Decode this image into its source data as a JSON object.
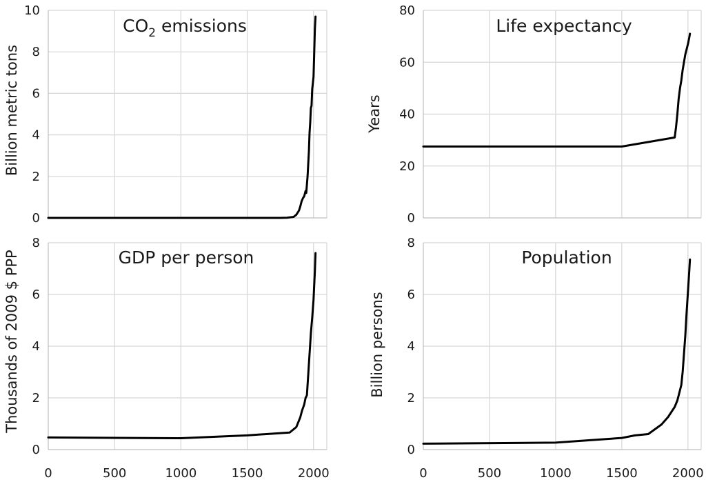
{
  "chart_data": [
    {
      "type": "line",
      "title": "CO₂ emissions",
      "xlabel": "",
      "ylabel": "Billion metric tons",
      "xlim": [
        0,
        2100
      ],
      "ylim": [
        0,
        10
      ],
      "x_ticks": [
        0,
        500,
        1000,
        1500,
        2000
      ],
      "y_ticks": [
        0,
        2,
        4,
        6,
        8,
        10
      ],
      "grid": true,
      "series": [
        {
          "x": [
            0,
            1750,
            1800,
            1850,
            1870,
            1890,
            1900,
            1910,
            1920,
            1930,
            1940,
            1945,
            1950,
            1955,
            1960,
            1965,
            1970,
            1975,
            1980,
            1985,
            1990,
            1995,
            2000,
            2005,
            2010,
            2015
          ],
          "values": [
            0,
            0,
            0.01,
            0.05,
            0.15,
            0.35,
            0.55,
            0.8,
            0.95,
            1.05,
            1.3,
            1.2,
            1.6,
            2.0,
            2.6,
            3.2,
            4.1,
            4.6,
            5.3,
            5.4,
            6.2,
            6.5,
            6.8,
            7.9,
            9.1,
            9.7
          ]
        }
      ]
    },
    {
      "type": "line",
      "title": "Life expectancy",
      "xlabel": "",
      "ylabel": "Years",
      "xlim": [
        0,
        2100
      ],
      "ylim": [
        0,
        80
      ],
      "x_ticks": [
        0,
        500,
        1000,
        1500,
        2000
      ],
      "y_ticks": [
        0,
        20,
        40,
        60,
        80
      ],
      "grid": true,
      "series": [
        {
          "x": [
            0,
            1500,
            1900,
            1910,
            1920,
            1930,
            1940,
            1950,
            1960,
            1970,
            1980,
            1990,
            2000,
            2010,
            2015
          ],
          "values": [
            27.5,
            27.5,
            31,
            35,
            40,
            46,
            50,
            53,
            57,
            60,
            63,
            65,
            67,
            69.5,
            71
          ]
        }
      ]
    },
    {
      "type": "line",
      "title": "GDP per person",
      "xlabel": "",
      "ylabel": "Thousands of 2009 $ PPP",
      "xlim": [
        0,
        2100
      ],
      "ylim": [
        0,
        8
      ],
      "x_ticks": [
        0,
        500,
        1000,
        1500,
        2000
      ],
      "y_ticks": [
        0,
        2,
        4,
        6,
        8
      ],
      "grid": true,
      "series": [
        {
          "x": [
            0,
            1000,
            1500,
            1820,
            1870,
            1900,
            1913,
            1930,
            1940,
            1950,
            1960,
            1970,
            1980,
            1990,
            2000,
            2010,
            2015
          ],
          "values": [
            0.47,
            0.44,
            0.55,
            0.66,
            0.87,
            1.25,
            1.5,
            1.75,
            2.0,
            2.1,
            2.9,
            3.7,
            4.5,
            5.1,
            5.8,
            6.9,
            7.6
          ]
        }
      ]
    },
    {
      "type": "line",
      "title": "Population",
      "xlabel": "",
      "ylabel": "Billion persons",
      "xlim": [
        0,
        2100
      ],
      "ylim": [
        0,
        8
      ],
      "x_ticks": [
        0,
        500,
        1000,
        1500,
        2000
      ],
      "y_ticks": [
        0,
        2,
        4,
        6,
        8
      ],
      "grid": true,
      "series": [
        {
          "x": [
            0,
            1000,
            1500,
            1600,
            1700,
            1800,
            1850,
            1900,
            1920,
            1940,
            1950,
            1960,
            1970,
            1980,
            1990,
            2000,
            2010,
            2015
          ],
          "values": [
            0.23,
            0.27,
            0.45,
            0.55,
            0.6,
            0.97,
            1.26,
            1.65,
            1.9,
            2.3,
            2.5,
            3.0,
            3.7,
            4.4,
            5.3,
            6.1,
            6.9,
            7.35
          ]
        }
      ]
    }
  ]
}
